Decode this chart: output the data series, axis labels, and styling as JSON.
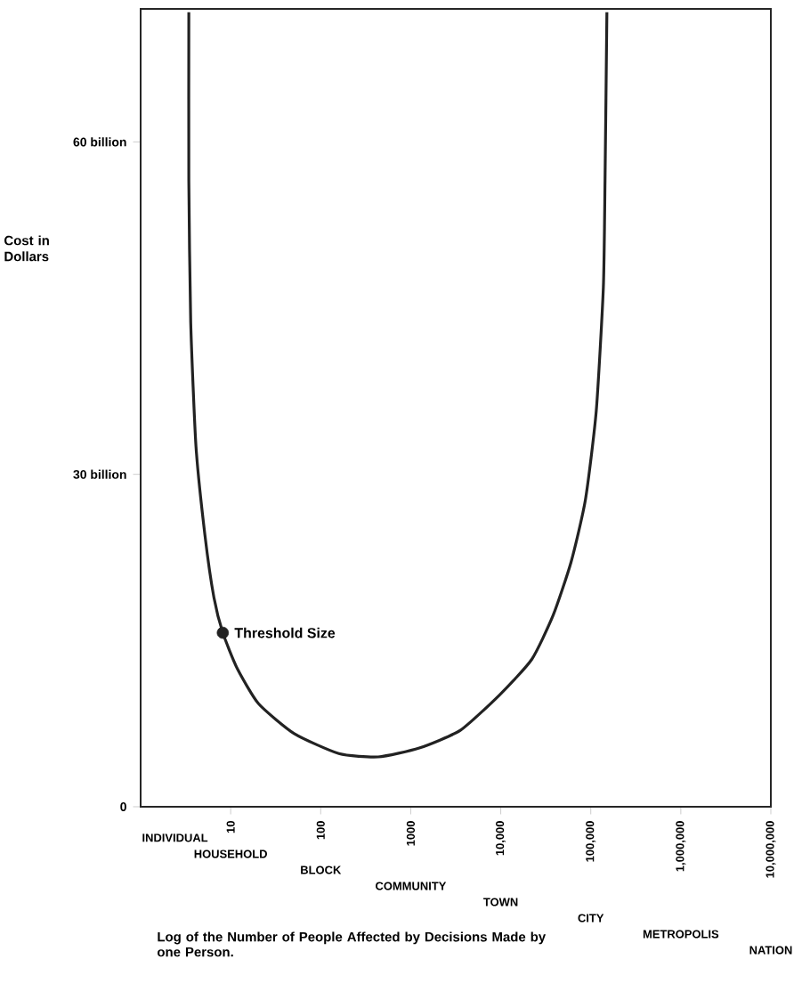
{
  "chart_data": {
    "type": "line",
    "xlabel": "Log of the Number of People Affected by Decisions Made by one Person.",
    "ylabel": "Cost in Dollars",
    "log": "x",
    "grid": false,
    "xlim": [
      1,
      10000000
    ],
    "ylim": [
      0,
      72
    ],
    "xticks": [
      10,
      100,
      1000,
      {
        "value": 10000,
        "label": "10,000"
      },
      {
        "value": 100000,
        "label": "100,000"
      },
      {
        "value": 1000000,
        "label": "1,000,000"
      },
      {
        "value": 10000000,
        "label": "10,000,000"
      }
    ],
    "yticks": [
      0,
      {
        "value": 30,
        "label": "30 billion"
      },
      {
        "value": 60,
        "label": "60 billion"
      }
    ],
    "series": [
      {
        "color": "#222222",
        "marker": "none",
        "line_style": "solid",
        "x": [
          3.43,
          3.43,
          3.6,
          4.12,
          5.18,
          6.51,
          8.18,
          11.8,
          20.4,
          50.8,
          159,
          435,
          1245,
          3560,
          9730,
          22100,
          38300,
          60500,
          87200,
          115000,
          138000,
          144000,
          151000
        ],
        "values": [
          71.7,
          56.5,
          43.7,
          32.5,
          24.5,
          18.9,
          15.7,
          12.5,
          9.3,
          6.6,
          4.8,
          4.5,
          5.3,
          6.9,
          10.1,
          13.3,
          17.3,
          22.1,
          27.7,
          35.7,
          46.9,
          56.5,
          71.7
        ]
      },
      {
        "type": "scatter",
        "color": "#222222",
        "marker": "circle",
        "x": [
          8.18
        ],
        "values": [
          15.7
        ]
      }
    ],
    "annotations": [
      "INDIVIDUAL",
      "HOUSEHOLD",
      "BLOCK",
      "COMMUNITY",
      "TOWN",
      "CITY",
      "METROPOLIS",
      "NATION",
      {
        "text": "Threshold Size",
        "x": 8.18,
        "y": 15.7
      }
    ]
  }
}
